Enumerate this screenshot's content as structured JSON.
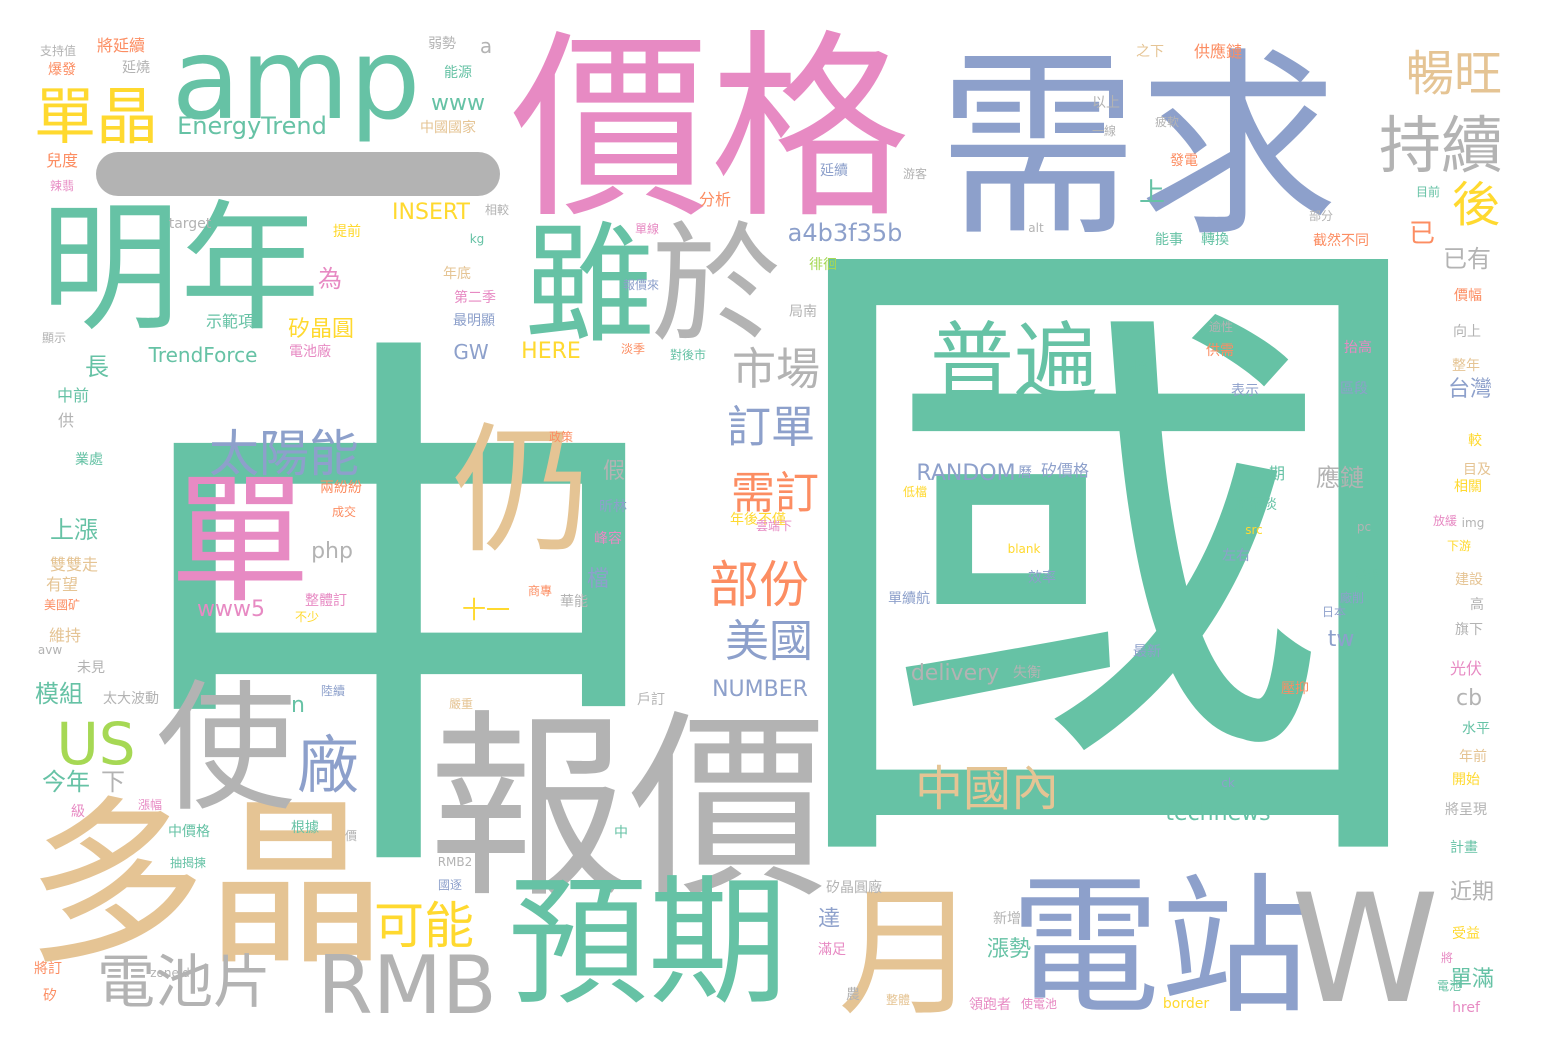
{
  "palette": {
    "teal": "#66c2a5",
    "orange": "#fc8d62",
    "blue": "#8da0cb",
    "pink": "#e78ac3",
    "green": "#a6d854",
    "yellow": "#ffd92f",
    "tan": "#e5c494",
    "gray": "#b3b3b3"
  },
  "decor_bar_color": "gray",
  "words": [
    {
      "text": "中",
      "color": "teal",
      "size": 560,
      "v": false
    },
    {
      "text": "國",
      "color": "teal",
      "size": 670,
      "v": false
    },
    {
      "text": "需求",
      "color": "blue",
      "size": 200,
      "v": false
    },
    {
      "text": "價格",
      "color": "pink",
      "size": 200,
      "v": false
    },
    {
      "text": "amp",
      "color": "teal",
      "size": 112,
      "v": false
    },
    {
      "text": "明年",
      "color": "teal",
      "size": 140,
      "v": false
    },
    {
      "text": "報價",
      "color": "gray",
      "size": 200,
      "v": false
    },
    {
      "text": "多晶",
      "color": "tan",
      "size": 180,
      "v": false
    },
    {
      "text": "預期",
      "color": "teal",
      "size": 140,
      "v": false
    },
    {
      "text": "電站",
      "color": "blue",
      "size": 150,
      "v": false
    },
    {
      "text": "雖",
      "color": "teal",
      "size": 130,
      "v": false
    },
    {
      "text": "於",
      "color": "gray",
      "size": 130,
      "v": false
    },
    {
      "text": "使",
      "color": "gray",
      "size": 140,
      "v": false
    },
    {
      "text": "月",
      "color": "tan",
      "size": 140,
      "v": false
    },
    {
      "text": "W",
      "color": "gray",
      "size": 150,
      "v": false
    },
    {
      "text": "仍",
      "color": "tan",
      "size": 140,
      "v": false
    },
    {
      "text": "單",
      "color": "pink",
      "size": 140,
      "v": false
    },
    {
      "text": "RMB",
      "color": "gray",
      "size": 80,
      "v": false
    },
    {
      "text": "普遍",
      "color": "teal",
      "size": 84,
      "v": false
    },
    {
      "text": "單晶",
      "color": "yellow",
      "size": 62,
      "v": false
    },
    {
      "text": "暢旺",
      "color": "tan",
      "size": 48,
      "v": false
    },
    {
      "text": "持續",
      "color": "gray",
      "size": 62,
      "v": false
    },
    {
      "text": "後",
      "color": "yellow",
      "size": 48,
      "v": false
    },
    {
      "text": "太陽能",
      "color": "blue",
      "size": 50,
      "v": false
    },
    {
      "text": "市場",
      "color": "gray",
      "size": 44,
      "v": false
    },
    {
      "text": "訂單",
      "color": "blue",
      "size": 44,
      "v": false
    },
    {
      "text": "需訂",
      "color": "orange",
      "size": 44,
      "v": false
    },
    {
      "text": "部份",
      "color": "orange",
      "size": 50,
      "v": false
    },
    {
      "text": "美國",
      "color": "blue",
      "size": 44,
      "v": false
    },
    {
      "text": "中國內",
      "color": "tan",
      "size": 48,
      "v": false
    },
    {
      "text": "US",
      "color": "green",
      "size": 58,
      "v": false
    },
    {
      "text": "廠",
      "color": "blue",
      "size": 62,
      "v": false
    },
    {
      "text": "可能",
      "color": "yellow",
      "size": 50,
      "v": false
    },
    {
      "text": "電池片",
      "color": "gray",
      "size": 58,
      "v": false
    },
    {
      "text": "EnergyTrend",
      "color": "teal",
      "size": 24,
      "v": false
    },
    {
      "text": "INSERT",
      "color": "yellow",
      "size": 22,
      "v": false
    },
    {
      "text": "a4b3f35b",
      "color": "blue",
      "size": 24,
      "v": false
    },
    {
      "text": "矽晶圓",
      "color": "yellow",
      "size": 22,
      "v": false
    },
    {
      "text": "TrendForce",
      "color": "teal",
      "size": 20,
      "v": false
    },
    {
      "text": "HERE",
      "color": "yellow",
      "size": 22,
      "v": false
    },
    {
      "text": "GW",
      "color": "blue",
      "size": 20,
      "v": false
    },
    {
      "text": "RANDOM",
      "color": "blue",
      "size": 22,
      "v": false
    },
    {
      "text": "php",
      "color": "gray",
      "size": 22,
      "v": false
    },
    {
      "text": "www5",
      "color": "pink",
      "size": 22,
      "v": false
    },
    {
      "text": "十一",
      "color": "yellow",
      "size": 24,
      "v": false
    },
    {
      "text": "NUMBER",
      "color": "blue",
      "size": 22,
      "v": false
    },
    {
      "text": "delivery",
      "color": "gray",
      "size": 22,
      "v": false
    },
    {
      "text": "technews",
      "color": "teal",
      "size": 22,
      "v": false
    },
    {
      "text": "www",
      "color": "teal",
      "size": 22,
      "v": false
    },
    {
      "text": "a",
      "color": "gray",
      "size": 20,
      "v": false
    },
    {
      "text": "cb",
      "color": "gray",
      "size": 22,
      "v": false
    },
    {
      "text": "tw",
      "color": "blue",
      "size": 22,
      "v": false
    },
    {
      "text": "n",
      "color": "teal",
      "size": 22,
      "v": false
    },
    {
      "text": "上",
      "color": "teal",
      "size": 26,
      "v": false
    },
    {
      "text": "已",
      "color": "orange",
      "size": 26,
      "v": false
    },
    {
      "text": "已有",
      "color": "gray",
      "size": 24,
      "v": false
    },
    {
      "text": "為",
      "color": "pink",
      "size": 24,
      "v": false
    },
    {
      "text": "長",
      "color": "teal",
      "size": 24,
      "v": false
    },
    {
      "text": "上漲",
      "color": "teal",
      "size": 24,
      "v": false
    },
    {
      "text": "模組",
      "color": "teal",
      "size": 24,
      "v": false
    },
    {
      "text": "今年",
      "color": "teal",
      "size": 24,
      "v": false
    },
    {
      "text": "下",
      "color": "gray",
      "size": 24,
      "v": false
    },
    {
      "text": "應鏈",
      "color": "gray",
      "size": 24,
      "v": false
    },
    {
      "text": "漲勢",
      "color": "teal",
      "size": 22,
      "v": false
    },
    {
      "text": "達",
      "color": "blue",
      "size": 22,
      "v": false
    },
    {
      "text": "單滿",
      "color": "teal",
      "size": 22,
      "v": false
    },
    {
      "text": "近期",
      "color": "gray",
      "size": 22,
      "v": false
    },
    {
      "text": "台灣",
      "color": "blue",
      "size": 22,
      "v": false
    },
    {
      "text": "假",
      "color": "gray",
      "size": 22,
      "v": false
    },
    {
      "text": "檔",
      "color": "blue",
      "size": 22,
      "v": false
    },
    {
      "text": "供應鏈",
      "color": "orange",
      "size": 16,
      "v": false
    },
    {
      "text": "將延續",
      "color": "orange",
      "size": 16,
      "v": false
    },
    {
      "text": "延燒",
      "color": "gray",
      "size": 14,
      "v": false
    },
    {
      "text": "弱勢",
      "color": "gray",
      "size": 14,
      "v": false
    },
    {
      "text": "能源",
      "color": "teal",
      "size": 14,
      "v": false
    },
    {
      "text": "中國國家",
      "color": "tan",
      "size": 14,
      "v": false
    },
    {
      "text": "之下",
      "color": "tan",
      "size": 14,
      "v": false
    },
    {
      "text": "以上",
      "color": "gray",
      "size": 14,
      "v": false
    },
    {
      "text": "一線",
      "color": "gray",
      "size": 12,
      "v": false
    },
    {
      "text": "疲軟",
      "color": "gray",
      "size": 12,
      "v": false
    },
    {
      "text": "發電",
      "color": "orange",
      "size": 14,
      "v": false
    },
    {
      "text": "延續",
      "color": "blue",
      "size": 14,
      "v": false
    },
    {
      "text": "分析",
      "color": "orange",
      "size": 16,
      "v": false
    },
    {
      "text": "游客",
      "color": "gray",
      "size": 12,
      "v": false
    },
    {
      "text": "目前",
      "color": "teal",
      "size": 12,
      "v": false
    },
    {
      "text": "部分",
      "color": "gray",
      "size": 12,
      "v": false
    },
    {
      "text": "能事",
      "color": "teal",
      "size": 14,
      "v": false
    },
    {
      "text": "轉換",
      "color": "teal",
      "size": 14,
      "v": false
    },
    {
      "text": "截然不同",
      "color": "orange",
      "size": 14,
      "v": false
    },
    {
      "text": "alt",
      "color": "gray",
      "size": 12,
      "v": false
    },
    {
      "text": "相較",
      "color": "gray",
      "size": 12,
      "v": false
    },
    {
      "text": "kg",
      "color": "teal",
      "size": 12,
      "v": false
    },
    {
      "text": "提前",
      "color": "yellow",
      "size": 14,
      "v": false
    },
    {
      "text": "徘徊",
      "color": "green",
      "size": 14,
      "v": false
    },
    {
      "text": "年底",
      "color": "tan",
      "size": 14,
      "v": false
    },
    {
      "text": "第二季",
      "color": "pink",
      "size": 14,
      "v": false
    },
    {
      "text": "最明顯",
      "color": "blue",
      "size": 14,
      "v": false
    },
    {
      "text": "局南",
      "color": "gray",
      "size": 14,
      "v": false
    },
    {
      "text": "示範項",
      "color": "teal",
      "size": 16,
      "v": false
    },
    {
      "text": "電池廠",
      "color": "pink",
      "size": 14,
      "v": false
    },
    {
      "text": "淡季",
      "color": "orange",
      "size": 12,
      "v": false
    },
    {
      "text": "對後市",
      "color": "teal",
      "size": 12,
      "v": false
    },
    {
      "text": "向上",
      "color": "gray",
      "size": 14,
      "v": false
    },
    {
      "text": "整年",
      "color": "tan",
      "size": 14,
      "v": false
    },
    {
      "text": "價幅",
      "color": "orange",
      "size": 14,
      "v": false
    },
    {
      "text": "抬高",
      "color": "pink",
      "size": 14,
      "v": false
    },
    {
      "text": "區段",
      "color": "blue",
      "size": 14,
      "v": false
    },
    {
      "text": "表示",
      "color": "blue",
      "size": 14,
      "v": false
    },
    {
      "text": "第一期",
      "color": "teal",
      "size": 16,
      "v": false
    },
    {
      "text": "矽價格",
      "color": "blue",
      "size": 16,
      "v": false
    },
    {
      "text": "曆",
      "color": "blue",
      "size": 14,
      "v": false
    },
    {
      "text": "低檔",
      "color": "yellow",
      "size": 12,
      "v": false
    },
    {
      "text": "將不淡",
      "color": "teal",
      "size": 14,
      "v": false
    },
    {
      "text": "src",
      "color": "yellow",
      "size": 12,
      "v": false
    },
    {
      "text": "左右",
      "color": "blue",
      "size": 14,
      "v": false
    },
    {
      "text": "政策",
      "color": "orange",
      "size": 12,
      "v": false
    },
    {
      "text": "年後不僅",
      "color": "yellow",
      "size": 14,
      "v": false
    },
    {
      "text": "成交",
      "color": "orange",
      "size": 12,
      "v": false
    },
    {
      "text": "不少",
      "color": "yellow",
      "size": 12,
      "v": false
    },
    {
      "text": "整體訂",
      "color": "pink",
      "size": 14,
      "v": false
    },
    {
      "text": "高",
      "color": "gray",
      "size": 14,
      "v": false
    },
    {
      "text": "建設",
      "color": "tan",
      "size": 14,
      "v": false
    },
    {
      "text": "下游",
      "color": "yellow",
      "size": 12,
      "v": false
    },
    {
      "text": "旗下",
      "color": "gray",
      "size": 14,
      "v": false
    },
    {
      "text": "光伏",
      "color": "pink",
      "size": 16,
      "v": false
    },
    {
      "text": "水平",
      "color": "teal",
      "size": 14,
      "v": false
    },
    {
      "text": "年前",
      "color": "tan",
      "size": 14,
      "v": false
    },
    {
      "text": "開始",
      "color": "yellow",
      "size": 14,
      "v": false
    },
    {
      "text": "將呈現",
      "color": "gray",
      "size": 14,
      "v": false
    },
    {
      "text": "計畫",
      "color": "teal",
      "size": 14,
      "v": false
    },
    {
      "text": "受益",
      "color": "yellow",
      "size": 14,
      "v": false
    },
    {
      "text": "矽晶圓廠",
      "color": "gray",
      "size": 14,
      "v": false
    },
    {
      "text": "新增",
      "color": "gray",
      "size": 14,
      "v": false
    },
    {
      "text": "滿足",
      "color": "pink",
      "size": 14,
      "v": false
    },
    {
      "text": "農",
      "color": "gray",
      "size": 14,
      "v": false
    },
    {
      "text": "整體",
      "color": "tan",
      "size": 12,
      "v": false
    },
    {
      "text": "領跑者",
      "color": "pink",
      "size": 14,
      "v": false
    },
    {
      "text": "使電池",
      "color": "pink",
      "size": 12,
      "v": false
    },
    {
      "text": "border",
      "color": "yellow",
      "size": 14,
      "v": false
    },
    {
      "text": "href",
      "color": "pink",
      "size": 14,
      "v": false
    },
    {
      "text": "壓抑",
      "color": "orange",
      "size": 14,
      "v": false
    },
    {
      "text": "最新",
      "color": "blue",
      "size": 14,
      "v": false
    },
    {
      "text": "ck",
      "color": "blue",
      "size": 12,
      "v": false
    },
    {
      "text": "失衡",
      "color": "gray",
      "size": 14,
      "v": false
    },
    {
      "text": "戶訂",
      "color": "gray",
      "size": 14,
      "v": false
    },
    {
      "text": "嚴重",
      "color": "tan",
      "size": 12,
      "v": false
    },
    {
      "text": "中",
      "color": "teal",
      "size": 14,
      "v": false
    },
    {
      "text": "RMB2",
      "color": "gray",
      "size": 12,
      "v": false
    },
    {
      "text": "國逐",
      "color": "blue",
      "size": 12,
      "v": false
    },
    {
      "text": "價",
      "color": "gray",
      "size": 12,
      "v": false
    },
    {
      "text": "根據",
      "color": "teal",
      "size": 14,
      "v": false
    },
    {
      "text": "太大波動",
      "color": "gray",
      "size": 14,
      "v": false
    },
    {
      "text": "未見",
      "color": "gray",
      "size": 14,
      "v": false
    },
    {
      "text": "維持",
      "color": "tan",
      "size": 16,
      "v": false
    },
    {
      "text": "avw",
      "color": "gray",
      "size": 12,
      "v": false
    },
    {
      "text": "美國矿",
      "color": "orange",
      "size": 12,
      "v": false
    },
    {
      "text": "有望",
      "color": "tan",
      "size": 16,
      "v": false
    },
    {
      "text": "雙雙走",
      "color": "tan",
      "size": 16,
      "v": false
    },
    {
      "text": "業處",
      "color": "teal",
      "size": 14,
      "v": false
    },
    {
      "text": "供",
      "color": "gray",
      "size": 16,
      "v": false
    },
    {
      "text": "中前",
      "color": "teal",
      "size": 16,
      "v": false
    },
    {
      "text": "顯示",
      "color": "gray",
      "size": 12,
      "v": false
    },
    {
      "text": "辣翡",
      "color": "pink",
      "size": 12,
      "v": false
    },
    {
      "text": "兒度",
      "color": "orange",
      "size": 16,
      "v": false
    },
    {
      "text": "爆發",
      "color": "orange",
      "size": 14,
      "v": false
    },
    {
      "text": "支持值",
      "color": "gray",
      "size": 12,
      "v": false
    },
    {
      "text": "target",
      "color": "gray",
      "size": 14,
      "v": false
    },
    {
      "text": "矽",
      "color": "orange",
      "size": 14,
      "v": false
    },
    {
      "text": "將訂",
      "color": "orange",
      "size": 14,
      "v": false
    },
    {
      "text": "zoneid",
      "color": "gray",
      "size": 12,
      "v": false
    },
    {
      "text": "抽揭揀",
      "color": "teal",
      "size": 12,
      "v": false
    },
    {
      "text": "中價格",
      "color": "teal",
      "size": 14,
      "v": false
    },
    {
      "text": "漲幅",
      "color": "pink",
      "size": 12,
      "v": false
    },
    {
      "text": "級",
      "color": "pink",
      "size": 14,
      "v": false
    },
    {
      "text": "陸續",
      "color": "blue",
      "size": 12,
      "v": false
    },
    {
      "text": "兩紛紛",
      "color": "orange",
      "size": 14,
      "v": false
    },
    {
      "text": "峰容",
      "color": "pink",
      "size": 14,
      "v": false
    },
    {
      "text": "昕林",
      "color": "blue",
      "size": 14,
      "v": false
    },
    {
      "text": "商專",
      "color": "orange",
      "size": 12,
      "v": false
    },
    {
      "text": "華能",
      "color": "gray",
      "size": 14,
      "v": false
    },
    {
      "text": "blank",
      "color": "yellow",
      "size": 12,
      "v": false
    },
    {
      "text": "效率",
      "color": "blue",
      "size": 14,
      "v": false
    },
    {
      "text": "單續航",
      "color": "blue",
      "size": 14,
      "v": false
    },
    {
      "text": "廠削",
      "color": "blue",
      "size": 12,
      "v": false
    },
    {
      "text": "降溫",
      "color": "teal",
      "size": 14,
      "v": false
    },
    {
      "text": "日本",
      "color": "blue",
      "size": 12,
      "v": false
    },
    {
      "text": "pc",
      "color": "gray",
      "size": 12,
      "v": false
    },
    {
      "text": "放緩",
      "color": "pink",
      "size": 12,
      "v": false
    },
    {
      "text": "img",
      "color": "gray",
      "size": 12,
      "v": false
    },
    {
      "text": "較",
      "color": "yellow",
      "size": 14,
      "v": false
    },
    {
      "text": "目及",
      "color": "tan",
      "size": 14,
      "v": false
    },
    {
      "text": "相關",
      "color": "yellow",
      "size": 14,
      "v": false
    },
    {
      "text": "調整",
      "color": "teal",
      "size": 12,
      "v": false
    },
    {
      "text": "逾性",
      "color": "gray",
      "size": 12,
      "v": false
    },
    {
      "text": "供需",
      "color": "orange",
      "size": 14,
      "v": false
    },
    {
      "text": "單線",
      "color": "pink",
      "size": 12,
      "v": false
    },
    {
      "text": "報價來",
      "color": "blue",
      "size": 12,
      "v": false
    },
    {
      "text": "將",
      "color": "pink",
      "size": 12,
      "v": false
    },
    {
      "text": "電池",
      "color": "teal",
      "size": 12,
      "v": false
    },
    {
      "text": "雲端下",
      "color": "pink",
      "size": 12,
      "v": false
    }
  ]
}
